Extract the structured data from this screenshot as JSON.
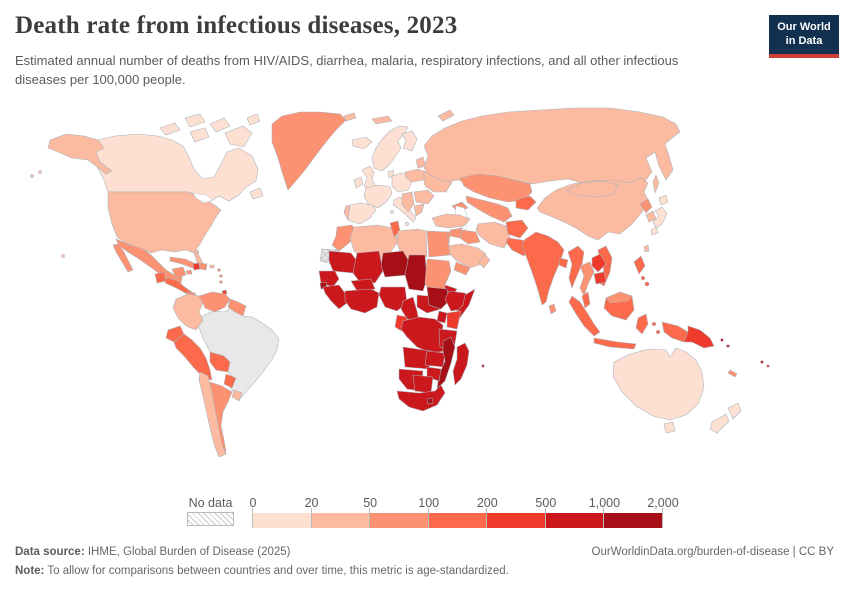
{
  "header": {
    "title": "Death rate from infectious diseases, 2023",
    "subtitle": "Estimated annual number of deaths from HIV/AIDS, diarrhea, malaria, respiratory infections, and all other infectious diseases per 100,000 people."
  },
  "logo": {
    "line1": "Our World",
    "line2": "in Data",
    "bg_color": "#12304f",
    "accent_color": "#cf3e35"
  },
  "legend": {
    "no_data_label": "No data",
    "tick_labels": [
      "0",
      "20",
      "50",
      "100",
      "200",
      "500",
      "1,000",
      "2,000"
    ],
    "bin_colors": [
      "#fee0d2",
      "#fcbba1",
      "#fc9272",
      "#fb6a4a",
      "#ef3b2c",
      "#cb181d",
      "#a50f15"
    ]
  },
  "footer": {
    "source_label": "Data source:",
    "source_text": " IHME, Global Burden of Disease (2025)",
    "credit": "OurWorldinData.org/burden-of-disease | CC BY",
    "note_label": "Note:",
    "note_text": " To allow for comparisons between countries and over time, this metric is age-standardized."
  },
  "chart_data": {
    "type": "choropleth_map",
    "title": "Death rate from infectious diseases, 2023",
    "unit": "deaths per 100,000 people (age-standardized)",
    "bins": [
      "0-20",
      "20-50",
      "50-100",
      "100-200",
      "200-500",
      "500-1,000",
      "1,000-2,000"
    ],
    "no_data_key": "no-data",
    "regions": [
      {
        "id": "canada",
        "bin": "0-20"
      },
      {
        "id": "newfoundland",
        "bin": "0-20"
      },
      {
        "id": "arctic-island-a",
        "bin": "0-20"
      },
      {
        "id": "arctic-island-b",
        "bin": "0-20"
      },
      {
        "id": "arctic-island-c",
        "bin": "0-20"
      },
      {
        "id": "arctic-island-d",
        "bin": "0-20"
      },
      {
        "id": "baffin-island",
        "bin": "0-20"
      },
      {
        "id": "arctic-island-f",
        "bin": "0-20"
      },
      {
        "id": "iceland",
        "bin": "0-20"
      },
      {
        "id": "great-britain",
        "bin": "0-20"
      },
      {
        "id": "ireland",
        "bin": "0-20"
      },
      {
        "id": "norway-sweden",
        "bin": "0-20"
      },
      {
        "id": "finland",
        "bin": "0-20"
      },
      {
        "id": "denmark",
        "bin": "0-20"
      },
      {
        "id": "france",
        "bin": "0-20"
      },
      {
        "id": "spain",
        "bin": "0-20"
      },
      {
        "id": "central-europe",
        "bin": "0-20"
      },
      {
        "id": "italy",
        "bin": "0-20"
      },
      {
        "id": "japan",
        "bin": "0-20"
      },
      {
        "id": "australia",
        "bin": "0-20"
      },
      {
        "id": "tasmania",
        "bin": "0-20"
      },
      {
        "id": "new-zealand",
        "bin": "0-20"
      },
      {
        "id": "usa",
        "bin": "20-50"
      },
      {
        "id": "alaska",
        "bin": "20-50"
      },
      {
        "id": "hawaii",
        "bin": "20-50"
      },
      {
        "id": "bahamas",
        "bin": "20-50"
      },
      {
        "id": "puerto-rico",
        "bin": "20-50"
      },
      {
        "id": "chile",
        "bin": "20-50"
      },
      {
        "id": "colombia",
        "bin": "20-50"
      },
      {
        "id": "uruguay",
        "bin": "20-50"
      },
      {
        "id": "portugal",
        "bin": "20-50"
      },
      {
        "id": "poland",
        "bin": "20-50"
      },
      {
        "id": "baltics",
        "bin": "20-50"
      },
      {
        "id": "belarus-ukraine",
        "bin": "20-50"
      },
      {
        "id": "romania-bulgaria",
        "bin": "20-50"
      },
      {
        "id": "balkans",
        "bin": "20-50"
      },
      {
        "id": "greece",
        "bin": "20-50"
      },
      {
        "id": "turkey",
        "bin": "20-50"
      },
      {
        "id": "cyprus",
        "bin": "20-50"
      },
      {
        "id": "russia",
        "bin": "20-50"
      },
      {
        "id": "sakhalin",
        "bin": "20-50"
      },
      {
        "id": "novaya-zemlya",
        "bin": "20-50"
      },
      {
        "id": "svalbard",
        "bin": "20-50"
      },
      {
        "id": "arctic-russia",
        "bin": "20-50"
      },
      {
        "id": "china",
        "bin": "20-50"
      },
      {
        "id": "mongolia",
        "bin": "20-50"
      },
      {
        "id": "south-korea",
        "bin": "20-50"
      },
      {
        "id": "taiwan",
        "bin": "20-50"
      },
      {
        "id": "iran",
        "bin": "20-50"
      },
      {
        "id": "saudi-arabia",
        "bin": "20-50"
      },
      {
        "id": "oman",
        "bin": "20-50"
      },
      {
        "id": "algeria",
        "bin": "20-50"
      },
      {
        "id": "libya",
        "bin": "20-50"
      },
      {
        "id": "greenland",
        "bin": "50-100"
      },
      {
        "id": "mexico",
        "bin": "50-100"
      },
      {
        "id": "baja-california",
        "bin": "50-100"
      },
      {
        "id": "yucatan",
        "bin": "50-100"
      },
      {
        "id": "cuba",
        "bin": "50-100"
      },
      {
        "id": "jamaica",
        "bin": "50-100"
      },
      {
        "id": "dominican-republic",
        "bin": "50-100"
      },
      {
        "id": "panama",
        "bin": "50-100"
      },
      {
        "id": "lesser-antilles",
        "bin": "50-100"
      },
      {
        "id": "venezuela",
        "bin": "50-100"
      },
      {
        "id": "guyanas",
        "bin": "50-100"
      },
      {
        "id": "argentina",
        "bin": "50-100"
      },
      {
        "id": "kazakhstan",
        "bin": "50-100"
      },
      {
        "id": "central-asia",
        "bin": "50-100"
      },
      {
        "id": "caucasus",
        "bin": "50-100"
      },
      {
        "id": "north-korea",
        "bin": "50-100"
      },
      {
        "id": "iraq",
        "bin": "50-100"
      },
      {
        "id": "syria",
        "bin": "50-100"
      },
      {
        "id": "levant",
        "bin": "50-100"
      },
      {
        "id": "yemen",
        "bin": "50-100"
      },
      {
        "id": "thailand",
        "bin": "50-100"
      },
      {
        "id": "malaysia-borneo",
        "bin": "50-100"
      },
      {
        "id": "morocco",
        "bin": "50-100"
      },
      {
        "id": "egypt",
        "bin": "50-100"
      },
      {
        "id": "sudan",
        "bin": "50-100"
      },
      {
        "id": "sri-lanka",
        "bin": "50-100"
      },
      {
        "id": "new-caledonia",
        "bin": "50-100"
      },
      {
        "id": "guatemala",
        "bin": "100-200"
      },
      {
        "id": "central-america",
        "bin": "100-200"
      },
      {
        "id": "ecuador",
        "bin": "100-200"
      },
      {
        "id": "peru",
        "bin": "100-200"
      },
      {
        "id": "bolivia",
        "bin": "100-200"
      },
      {
        "id": "paraguay",
        "bin": "100-200"
      },
      {
        "id": "kyrgyzstan-tajikistan",
        "bin": "100-200"
      },
      {
        "id": "afghanistan",
        "bin": "100-200"
      },
      {
        "id": "pakistan",
        "bin": "100-200"
      },
      {
        "id": "india",
        "bin": "100-200"
      },
      {
        "id": "bangladesh",
        "bin": "100-200"
      },
      {
        "id": "myanmar",
        "bin": "100-200"
      },
      {
        "id": "vietnam",
        "bin": "100-200"
      },
      {
        "id": "malay-peninsula",
        "bin": "100-200"
      },
      {
        "id": "sumatra",
        "bin": "100-200"
      },
      {
        "id": "borneo",
        "bin": "100-200"
      },
      {
        "id": "java",
        "bin": "100-200"
      },
      {
        "id": "sulawesi",
        "bin": "100-200"
      },
      {
        "id": "moluccas",
        "bin": "100-200"
      },
      {
        "id": "lesser-sunda",
        "bin": "100-200"
      },
      {
        "id": "philippines",
        "bin": "100-200"
      },
      {
        "id": "west-papua",
        "bin": "100-200"
      },
      {
        "id": "tunisia",
        "bin": "100-200"
      },
      {
        "id": "haiti",
        "bin": "200-500"
      },
      {
        "id": "trinidad",
        "bin": "200-500"
      },
      {
        "id": "laos",
        "bin": "200-500"
      },
      {
        "id": "cambodia",
        "bin": "200-500"
      },
      {
        "id": "papua-new-guinea",
        "bin": "200-500"
      },
      {
        "id": "kenya",
        "bin": "200-500"
      },
      {
        "id": "gabon-congo",
        "bin": "200-500"
      },
      {
        "id": "mauritania",
        "bin": "500-1,000"
      },
      {
        "id": "mali",
        "bin": "500-1,000"
      },
      {
        "id": "senegal",
        "bin": "500-1,000"
      },
      {
        "id": "guinea",
        "bin": "500-1,000"
      },
      {
        "id": "burkina-faso",
        "bin": "500-1,000"
      },
      {
        "id": "ghana-ivory-coast",
        "bin": "500-1,000"
      },
      {
        "id": "nigeria",
        "bin": "500-1,000"
      },
      {
        "id": "cameroon",
        "bin": "500-1,000"
      },
      {
        "id": "central-african-republic",
        "bin": "500-1,000"
      },
      {
        "id": "eritrea",
        "bin": "500-1,000"
      },
      {
        "id": "ethiopia",
        "bin": "500-1,000"
      },
      {
        "id": "somalia",
        "bin": "500-1,000"
      },
      {
        "id": "uganda",
        "bin": "500-1,000"
      },
      {
        "id": "drc",
        "bin": "500-1,000"
      },
      {
        "id": "tanzania",
        "bin": "500-1,000"
      },
      {
        "id": "angola",
        "bin": "500-1,000"
      },
      {
        "id": "zambia",
        "bin": "500-1,000"
      },
      {
        "id": "zimbabwe",
        "bin": "500-1,000"
      },
      {
        "id": "namibia",
        "bin": "500-1,000"
      },
      {
        "id": "botswana",
        "bin": "500-1,000"
      },
      {
        "id": "south-africa",
        "bin": "500-1,000"
      },
      {
        "id": "madagascar",
        "bin": "500-1,000"
      },
      {
        "id": "solomon-islands",
        "bin": "500-1,000"
      },
      {
        "id": "fiji",
        "bin": "500-1,000"
      },
      {
        "id": "mauritius",
        "bin": "500-1,000"
      },
      {
        "id": "niger",
        "bin": "1,000-2,000"
      },
      {
        "id": "chad",
        "bin": "1,000-2,000"
      },
      {
        "id": "south-sudan",
        "bin": "1,000-2,000"
      },
      {
        "id": "guinea-bissau",
        "bin": "1,000-2,000"
      },
      {
        "id": "lesotho",
        "bin": "1,000-2,000"
      },
      {
        "id": "mozambique",
        "bin": "1,000-2,000"
      },
      {
        "id": "western-sahara",
        "bin": "no-data"
      }
    ]
  }
}
